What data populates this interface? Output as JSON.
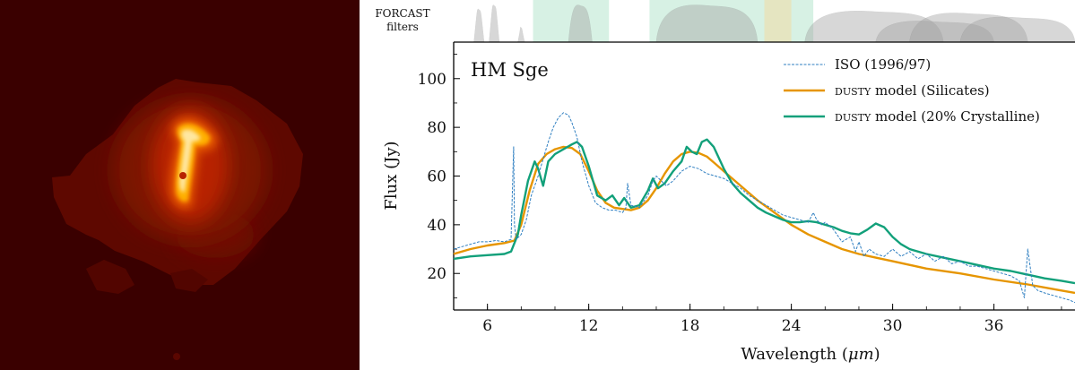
{
  "image": {
    "colormap": "hot"
  },
  "filter_panel": {
    "label_line1": "FORCAST",
    "label_line2": "filters",
    "fill_color": "#9e9e9e",
    "window_color": "#cdeedd"
  },
  "chart_data": {
    "type": "line",
    "title": "HM Sge",
    "xlabel": "Wavelength ($\\mu m$)",
    "xlabel_text": "Wavelength (",
    "xlabel_unit": "μm",
    "xlabel_close": ")",
    "ylabel": "Flux (Jy)",
    "xlim": [
      4.0,
      40.8
    ],
    "ylim": [
      5,
      115
    ],
    "xticks": [
      6,
      12,
      18,
      24,
      30,
      36
    ],
    "yticks": [
      20,
      40,
      60,
      80,
      100
    ],
    "legend_position": "top-right",
    "series": [
      {
        "name": "ISO (1996/97)",
        "style": "dashed-thin",
        "color": "#2f7fc1",
        "x": [
          4.0,
          4.5,
          5.0,
          5.5,
          6.0,
          6.5,
          7.0,
          7.4,
          7.55,
          7.6,
          7.7,
          8.0,
          8.3,
          8.6,
          9.0,
          9.3,
          9.6,
          9.9,
          10.2,
          10.5,
          10.8,
          11.0,
          11.3,
          11.6,
          12.0,
          12.4,
          12.8,
          13.2,
          13.6,
          14.0,
          14.2,
          14.3,
          14.5,
          15.0,
          15.5,
          15.8,
          16.0,
          16.3,
          16.6,
          17.0,
          17.5,
          18.0,
          18.5,
          19.0,
          19.5,
          20.0,
          20.5,
          21.0,
          21.5,
          22.0,
          22.5,
          23.0,
          23.5,
          24.0,
          24.5,
          25.0,
          25.3,
          25.5,
          25.8,
          26.0,
          26.5,
          27.0,
          27.5,
          27.8,
          28.0,
          28.3,
          28.6,
          29.0,
          29.5,
          30.0,
          30.5,
          31.0,
          31.5,
          32.0,
          32.5,
          33.0,
          33.5,
          34.0,
          34.5,
          35.0,
          35.5,
          36.0,
          36.5,
          37.0,
          37.5,
          37.8,
          38.0,
          38.3,
          38.6,
          39.0,
          39.5,
          40.0,
          40.5,
          40.8
        ],
        "y": [
          30,
          31,
          32,
          33,
          33,
          33.5,
          33,
          34,
          72,
          40,
          34,
          36,
          42,
          52,
          60,
          67,
          74,
          80,
          84,
          86,
          85,
          82,
          76,
          66,
          56,
          49,
          47,
          46,
          46,
          45,
          47,
          57,
          48,
          47,
          52,
          58,
          60,
          58,
          56,
          58,
          62,
          64,
          63,
          61,
          60,
          59,
          57,
          55,
          52,
          50,
          48,
          46,
          44,
          43,
          42,
          41,
          45,
          42,
          40,
          41,
          38,
          33,
          35,
          29,
          33,
          27,
          30,
          28,
          27,
          30,
          27,
          29,
          26,
          28,
          25,
          27,
          24,
          25,
          23,
          23,
          22,
          21,
          20,
          19,
          17,
          10,
          30,
          15,
          13,
          12,
          11,
          10,
          9,
          8
        ]
      },
      {
        "name": "DUSTY model (Silicates)",
        "name_prefix": "dusty",
        "name_suffix": " model (Silicates)",
        "style": "solid",
        "color": "#e69500",
        "x": [
          4.0,
          5.0,
          6.0,
          7.0,
          7.6,
          8.0,
          8.5,
          9.0,
          9.5,
          10.0,
          10.5,
          11.0,
          11.5,
          12.0,
          12.5,
          13.0,
          13.5,
          14.0,
          14.5,
          15.0,
          15.5,
          16.0,
          16.5,
          17.0,
          17.5,
          18.0,
          18.5,
          19.0,
          19.5,
          20.0,
          21.0,
          22.0,
          23.0,
          24.0,
          25.0,
          26.0,
          27.0,
          28.0,
          29.0,
          30.0,
          32.0,
          34.0,
          36.0,
          38.0,
          40.0,
          40.8
        ],
        "y": [
          28,
          30,
          31.5,
          32.5,
          33.5,
          40,
          54,
          65,
          69,
          71,
          72,
          71.5,
          69,
          62,
          54,
          49,
          47,
          46.5,
          46,
          47,
          50,
          55,
          61,
          66,
          69,
          70,
          69.5,
          68,
          65,
          62,
          56,
          50,
          45,
          40,
          36,
          33,
          30,
          28,
          26.5,
          25,
          22,
          20,
          17.5,
          15.5,
          13,
          12
        ]
      },
      {
        "name": "DUSTY model (20% Crystalline)",
        "name_prefix": "dusty",
        "name_suffix": " model (20% Crystalline)",
        "style": "solid",
        "color": "#12a07a",
        "x": [
          4.0,
          5.0,
          6.0,
          7.0,
          7.4,
          7.8,
          8.0,
          8.4,
          8.8,
          9.0,
          9.3,
          9.6,
          10.0,
          10.5,
          11.0,
          11.3,
          11.6,
          12.0,
          12.5,
          13.0,
          13.4,
          13.8,
          14.1,
          14.5,
          15.0,
          15.5,
          15.8,
          16.1,
          16.5,
          17.0,
          17.5,
          17.8,
          18.1,
          18.4,
          18.7,
          19.0,
          19.4,
          20.0,
          20.5,
          21.0,
          21.5,
          22.0,
          22.5,
          23.0,
          23.5,
          24.0,
          24.5,
          25.0,
          25.5,
          26.0,
          26.5,
          27.0,
          27.5,
          28.0,
          28.5,
          29.0,
          29.5,
          30.0,
          30.5,
          31.0,
          32.0,
          33.0,
          34.0,
          35.0,
          36.0,
          37.0,
          38.0,
          39.0,
          40.0,
          40.8
        ],
        "y": [
          26,
          27,
          27.5,
          28,
          29,
          36,
          44,
          58,
          66,
          63,
          56,
          66,
          69,
          71,
          73,
          74,
          72,
          64,
          52,
          50,
          52,
          48,
          51,
          47,
          48,
          54,
          59,
          55,
          57,
          62,
          66,
          72,
          70,
          69,
          74,
          75,
          72,
          63,
          57,
          53,
          50,
          47,
          45,
          43.5,
          42,
          41,
          41,
          41.5,
          41,
          40,
          39,
          37.5,
          36.5,
          36,
          38,
          40.5,
          39,
          35,
          32,
          30,
          28,
          26.5,
          25,
          23.5,
          22,
          21,
          19.5,
          18,
          17,
          16
        ]
      }
    ]
  }
}
